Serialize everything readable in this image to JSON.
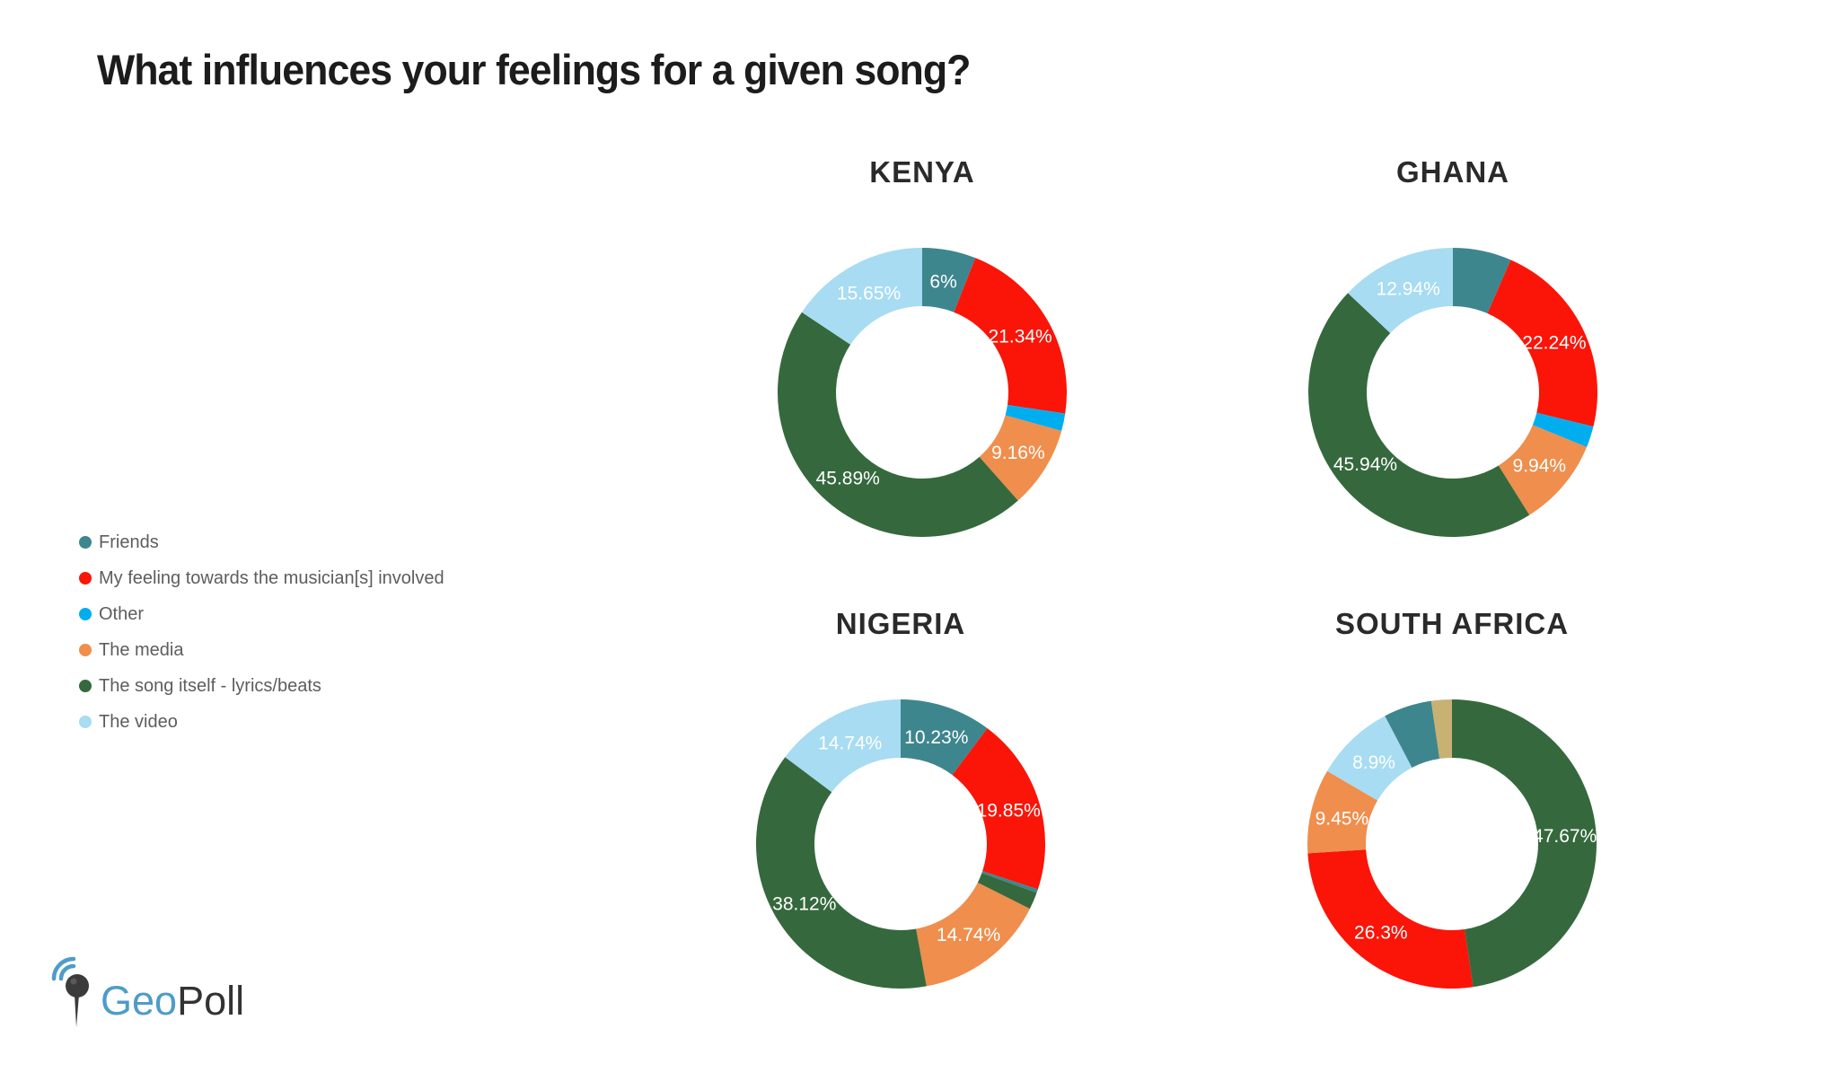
{
  "title": "What influences your feelings for a given song?",
  "palette": {
    "friends": "#3e868e",
    "musician": "#fb1408",
    "other": "#00aeef",
    "media": "#ef8e4d",
    "song": "#35693d",
    "video": "#a7dcf2",
    "tan": "#c7b173"
  },
  "legend": [
    {
      "label": "Friends",
      "color": "friends"
    },
    {
      "label": "My feeling towards the musician[s] involved",
      "color": "musician"
    },
    {
      "label": "Other",
      "color": "other"
    },
    {
      "label": "The media",
      "color": "media"
    },
    {
      "label": "The song itself - lyrics/beats",
      "color": "song"
    },
    {
      "label": "The video",
      "color": "video"
    }
  ],
  "chart_data": {
    "type": "donut",
    "title": "What influences your feelings for a given song?",
    "legend_position": "left",
    "unit": "percent",
    "note": "slices listed clockwise from 12 o'clock; unlabeled slice values estimated from arc angles",
    "charts": [
      {
        "name": "KENYA",
        "slices": [
          {
            "category": "Friends",
            "color": "friends",
            "value": 6,
            "label": "6%"
          },
          {
            "category": "My feeling towards the musician[s] involved",
            "color": "musician",
            "value": 21.34,
            "label": "21.34%"
          },
          {
            "category": "Other",
            "color": "other",
            "value": 1.96,
            "label": null
          },
          {
            "category": "The media",
            "color": "media",
            "value": 9.16,
            "label": "9.16%"
          },
          {
            "category": "The song itself - lyrics/beats",
            "color": "song",
            "value": 45.89,
            "label": "45.89%"
          },
          {
            "category": "The video",
            "color": "video",
            "value": 15.65,
            "label": "15.65%"
          }
        ]
      },
      {
        "name": "GHANA",
        "slices": [
          {
            "category": "Friends",
            "color": "friends",
            "value": 6.56,
            "label": null
          },
          {
            "category": "My feeling towards the musician[s] involved",
            "color": "musician",
            "value": 22.24,
            "label": "22.24%"
          },
          {
            "category": "Other",
            "color": "other",
            "value": 2.38,
            "label": null
          },
          {
            "category": "The media",
            "color": "media",
            "value": 9.94,
            "label": "9.94%"
          },
          {
            "category": "The song itself - lyrics/beats",
            "color": "song",
            "value": 45.94,
            "label": "45.94%"
          },
          {
            "category": "The video",
            "color": "video",
            "value": 12.94,
            "label": "12.94%"
          }
        ]
      },
      {
        "name": "NIGERIA",
        "slices": [
          {
            "category": "Friends",
            "color": "friends",
            "value": 10.23,
            "label": "10.23%"
          },
          {
            "category": "My feeling towards the musician[s] involved",
            "color": "musician",
            "value": 19.85,
            "label": "19.85%"
          },
          {
            "category": "(unlabeled sliver)",
            "color": "friends",
            "value": 0.4,
            "label": null
          },
          {
            "category": "(unlabeled sliver)",
            "color": "song",
            "value": 1.92,
            "label": null
          },
          {
            "category": "The media",
            "color": "media",
            "value": 14.74,
            "label": "14.74%"
          },
          {
            "category": "The song itself - lyrics/beats",
            "color": "song",
            "value": 38.12,
            "label": "38.12%"
          },
          {
            "category": "The video",
            "color": "video",
            "value": 14.74,
            "label": "14.74%"
          }
        ]
      },
      {
        "name": "SOUTH AFRICA",
        "slices": [
          {
            "category": "The song itself - lyrics/beats",
            "color": "song",
            "value": 47.67,
            "label": "47.67%"
          },
          {
            "category": "My feeling towards the musician[s] involved",
            "color": "musician",
            "value": 26.3,
            "label": "26.3%"
          },
          {
            "category": "The media",
            "color": "media",
            "value": 9.45,
            "label": "9.45%"
          },
          {
            "category": "The video",
            "color": "video",
            "value": 8.9,
            "label": "8.9%"
          },
          {
            "category": "Friends",
            "color": "friends",
            "value": 5.38,
            "label": null
          },
          {
            "category": "(unlabeled sliver)",
            "color": "tan",
            "value": 2.3,
            "label": null
          }
        ]
      }
    ]
  },
  "logo": {
    "primary": "Geo",
    "secondary": "Poll"
  }
}
